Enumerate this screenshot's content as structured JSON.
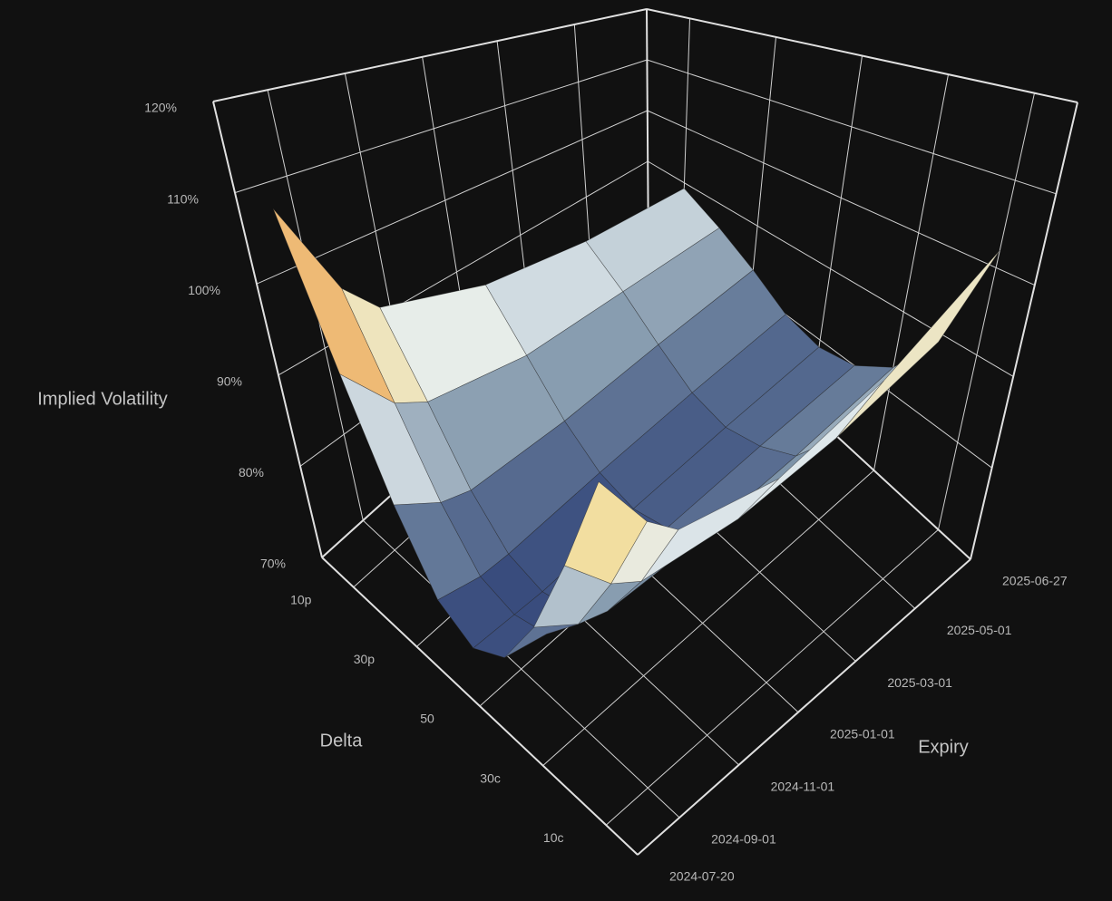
{
  "chart_data": {
    "type": "surface",
    "xaxis_title": "Delta",
    "yaxis_title": "Expiry",
    "zaxis_title": "Implied Volatility",
    "xlim": [
      0,
      1
    ],
    "xticks": [
      {
        "value": 0.1,
        "label": "10p"
      },
      {
        "value": 0.3,
        "label": "30p"
      },
      {
        "value": 0.5,
        "label": "50"
      },
      {
        "value": 0.7,
        "label": "30c"
      },
      {
        "value": 0.9,
        "label": "10c"
      }
    ],
    "ylim": [
      "2024-07-20",
      "2025-06-27"
    ],
    "yticks": [
      "2024-07-20",
      "2024-09-01",
      "2024-11-01",
      "2025-01-01",
      "2025-03-01",
      "2025-05-01",
      "2025-06-27"
    ],
    "zlim": [
      70,
      120
    ],
    "zticks": [
      {
        "value": 70,
        "label": "70%"
      },
      {
        "value": 80,
        "label": "80%"
      },
      {
        "value": 90,
        "label": "90%"
      },
      {
        "value": 100,
        "label": "100%"
      },
      {
        "value": 110,
        "label": "110%"
      },
      {
        "value": 120,
        "label": "120%"
      }
    ],
    "grid": true,
    "colorscale": [
      "#34477a",
      "#7d93a8",
      "#e6eef0",
      "#f5d98a",
      "#e07a4a",
      "#c0392b"
    ],
    "x": [
      0.1,
      0.2,
      0.3,
      0.4,
      0.5,
      0.6,
      0.7,
      0.8,
      0.9
    ],
    "y": [
      "2024-07-20",
      "2024-08-30",
      "2024-09-27",
      "2024-12-27",
      "2025-03-28",
      "2025-06-27"
    ],
    "z": [
      [
        111,
        96,
        85,
        78,
        76,
        78,
        84,
        93,
        104
      ],
      [
        100,
        90,
        82,
        77,
        76,
        77,
        81,
        88,
        97
      ],
      [
        96,
        88,
        81,
        77,
        76,
        77,
        80,
        86,
        94
      ],
      [
        92,
        86,
        81,
        78,
        77,
        78,
        80,
        85,
        92
      ],
      [
        90,
        86,
        82,
        79,
        78,
        79,
        81,
        86,
        95
      ],
      [
        89,
        86,
        83,
        80,
        79,
        80,
        83,
        89,
        102
      ]
    ]
  }
}
